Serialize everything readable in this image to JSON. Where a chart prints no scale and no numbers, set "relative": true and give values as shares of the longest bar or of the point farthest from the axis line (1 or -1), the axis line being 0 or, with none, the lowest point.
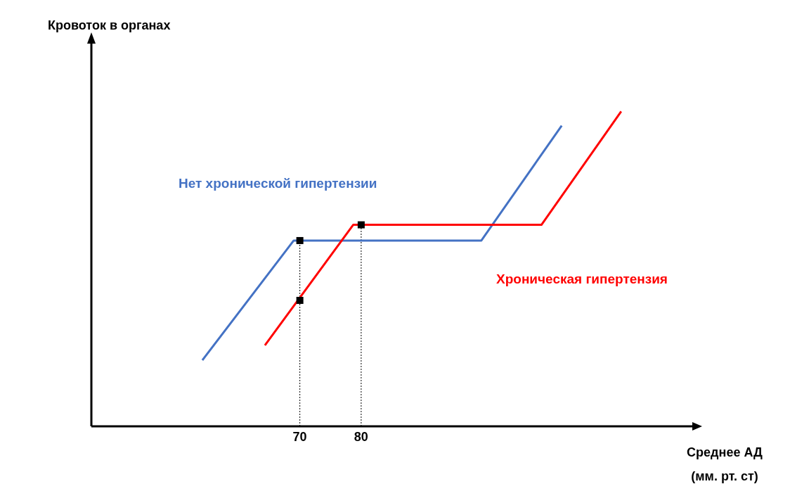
{
  "chart_data": {
    "type": "line",
    "xlabel": "Среднее АД\n(мм. рт. ст)",
    "annotations": [
      "Кровоток в органах"
    ],
    "relative": true,
    "xlim": [
      36,
      134
    ],
    "xticks": [
      70,
      80
    ],
    "tick_labels": "x",
    "line_style": "solid",
    "ref_lines": [
      {
        "axis": "x",
        "value": 70,
        "line_style": "dotted",
        "color": "#000000"
      },
      {
        "axis": "x",
        "value": 80,
        "line_style": "dotted",
        "color": "#000000"
      }
    ],
    "series": [
      {
        "name": "Нет хронической гипертензии",
        "color": "#4472c4",
        "x": [
          54.1,
          69,
          99.6,
          112.7
        ],
        "values": [
          0.21,
          0.59,
          0.59,
          0.955
        ]
      },
      {
        "name": "Хроническая гипертензия",
        "color": "#ff0000",
        "x": [
          64.3,
          78.7,
          109.4,
          122.4
        ],
        "values": [
          0.257,
          0.64,
          0.64,
          1
        ]
      },
      {
        "type": "scatter",
        "color": "#000000",
        "marker": "square",
        "x": [
          70,
          70,
          80
        ],
        "values": [
          0.59,
          0.4,
          0.64
        ]
      }
    ]
  }
}
